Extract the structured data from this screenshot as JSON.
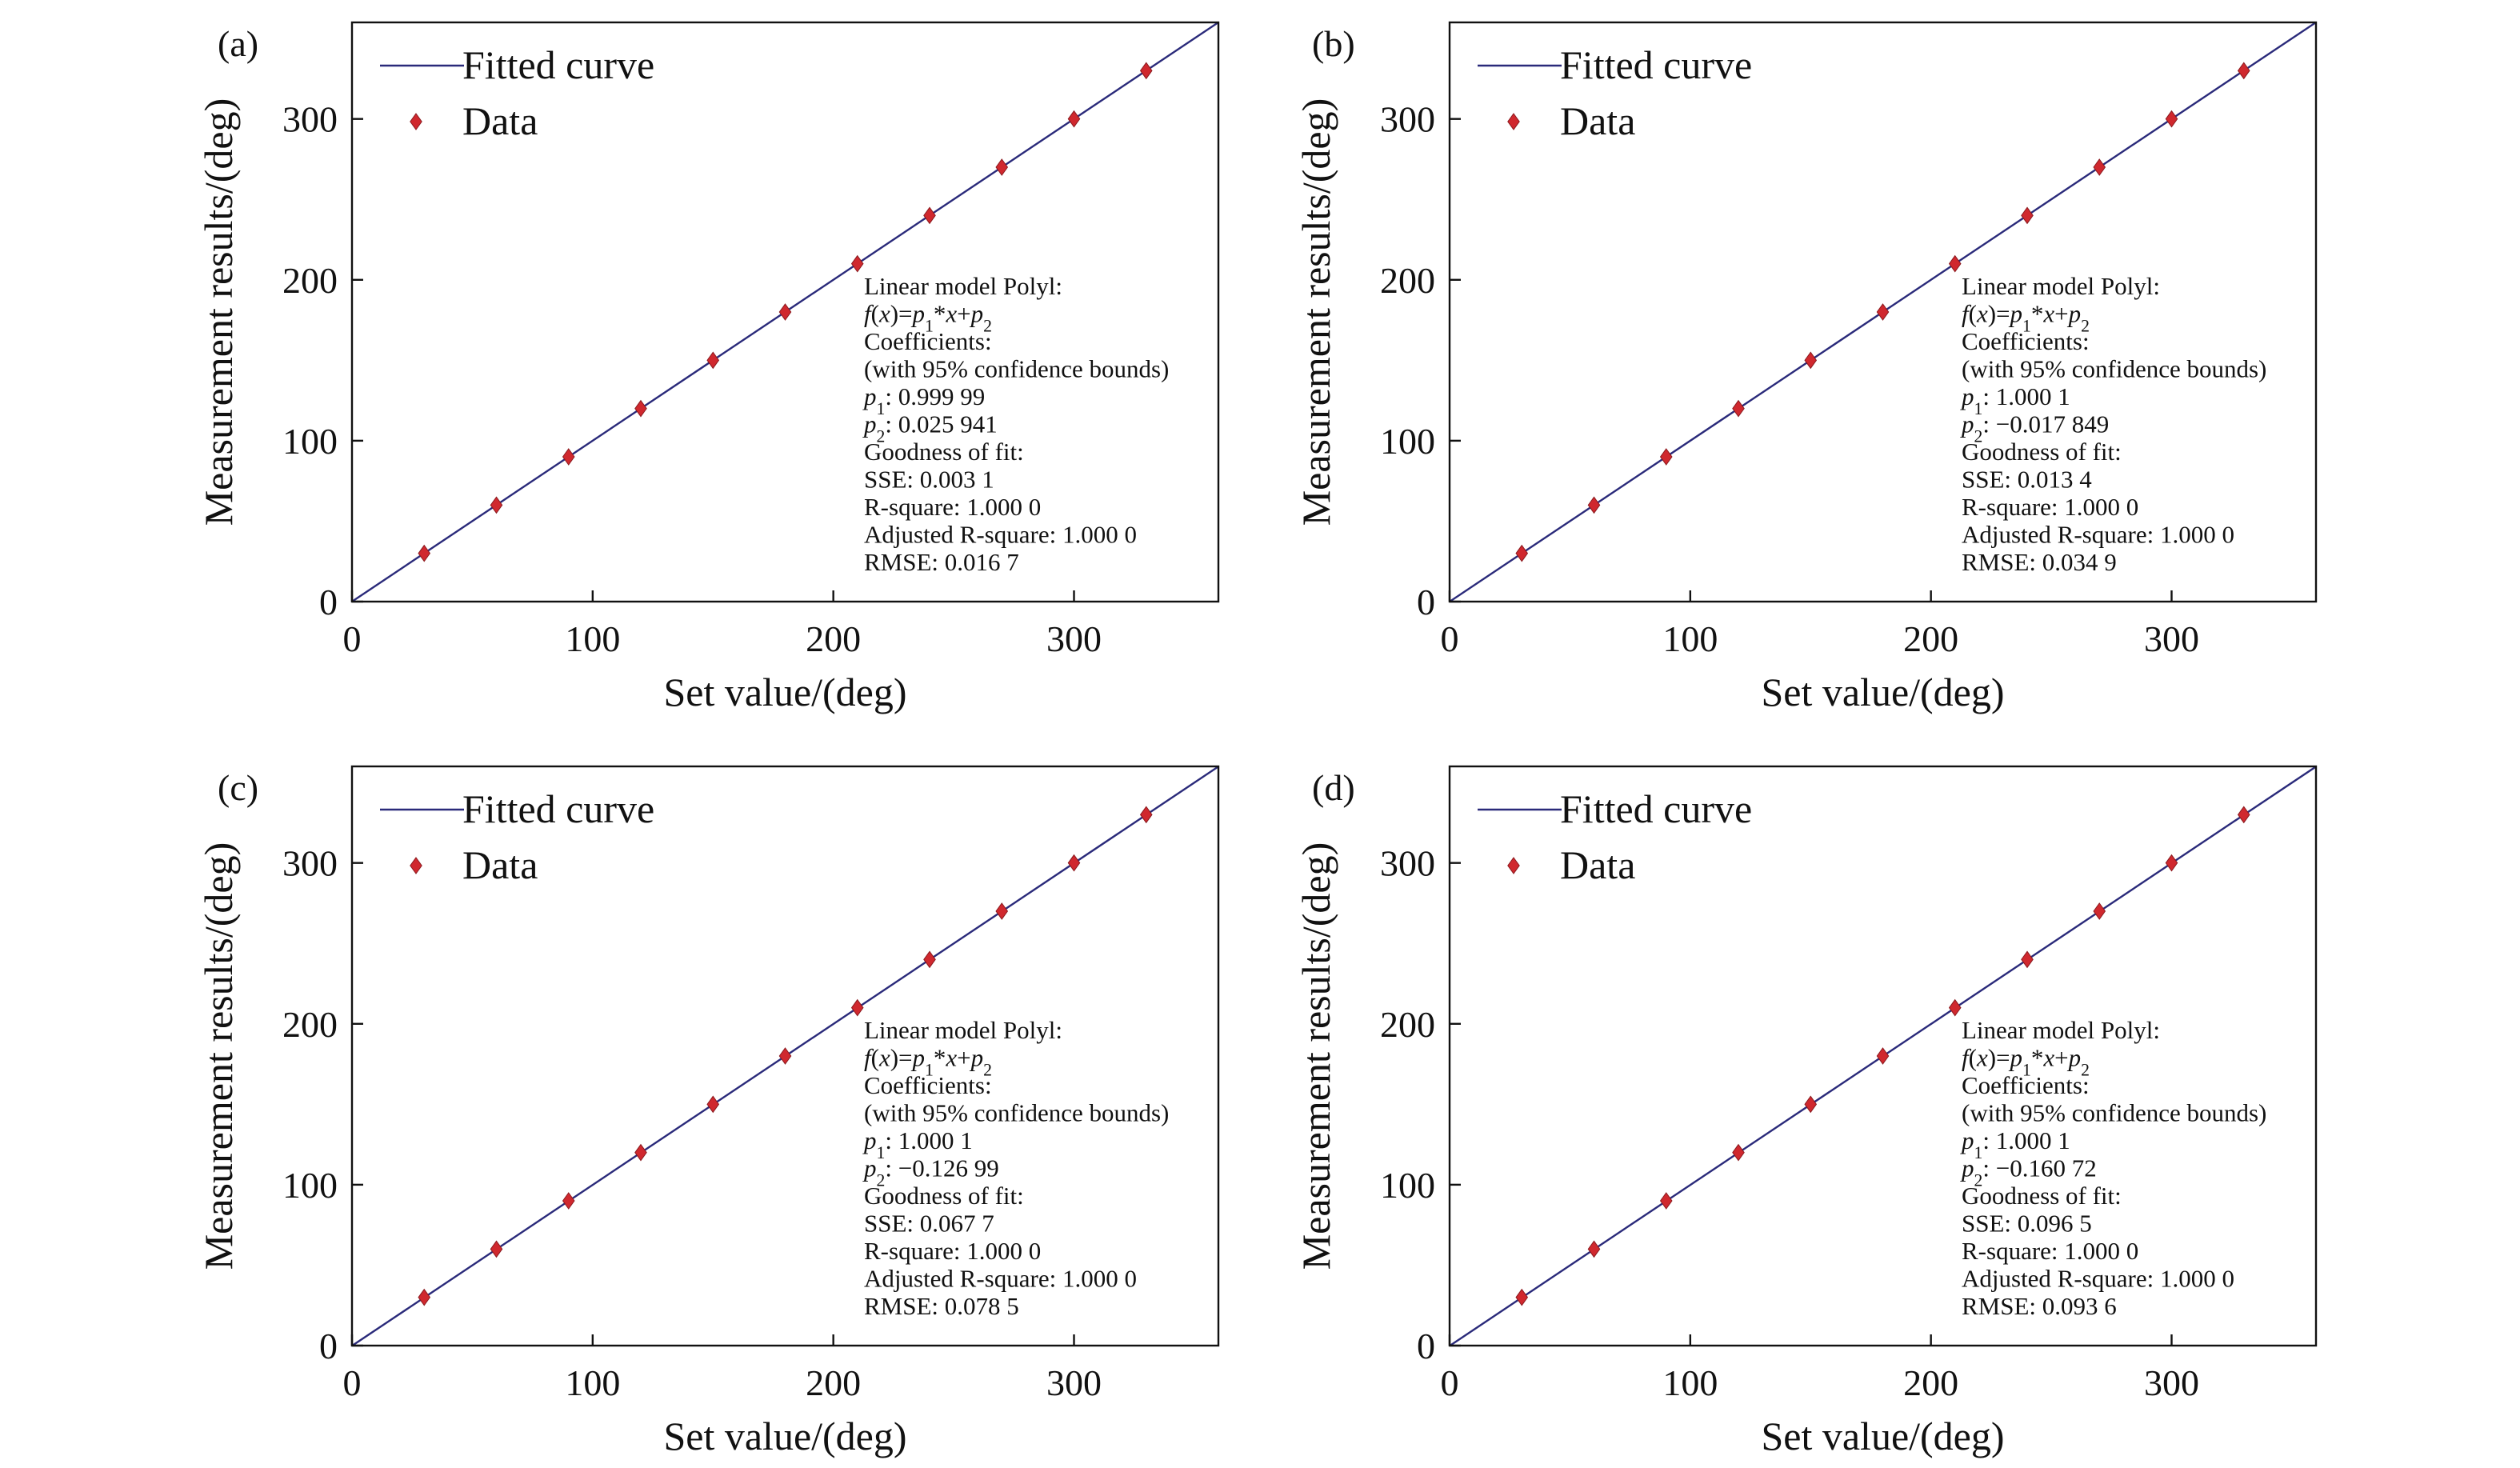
{
  "colors": {
    "fit_line": "#2a2a7a",
    "marker": "#d0282e",
    "axis": "#111111"
  },
  "chart_data": [
    {
      "panel_label": "(a)",
      "type": "scatter",
      "xlabel": "Set value/(deg)",
      "ylabel": "Measurement results/(deg)",
      "xlim": [
        0,
        360
      ],
      "ylim": [
        0,
        360
      ],
      "xticks": [
        0,
        100,
        200,
        300
      ],
      "yticks": [
        0,
        100,
        200,
        300
      ],
      "legend": {
        "position": "top-left",
        "line_label": "Fitted curve",
        "marker_label": "Data"
      },
      "data": {
        "x": [
          30,
          60,
          90,
          120,
          150,
          180,
          210,
          240,
          270,
          300,
          330
        ],
        "y": [
          30,
          60,
          90,
          120,
          150,
          180,
          210,
          240,
          270,
          300,
          330
        ]
      },
      "fit": {
        "p1": 0.99999,
        "p2": 0.025941
      },
      "annotation": {
        "model": "Linear model Polyl:",
        "coefficients": "Coefficients:",
        "bounds": "(with 95% confidence bounds)",
        "p1_value": ": 0.999 99",
        "p2_value": ": 0.025 941",
        "goodness": "Goodness of fit:",
        "sse": "SSE: 0.003 1",
        "rsq": "R-square: 1.000 0",
        "adj_rsq": "Adjusted R-square: 1.000 0",
        "rmse": "RMSE: 0.016 7"
      }
    },
    {
      "panel_label": "(b)",
      "type": "scatter",
      "xlabel": "Set value/(deg)",
      "ylabel": "Measurement results/(deg)",
      "xlim": [
        0,
        360
      ],
      "ylim": [
        0,
        360
      ],
      "xticks": [
        0,
        100,
        200,
        300
      ],
      "yticks": [
        0,
        100,
        200,
        300
      ],
      "legend": {
        "position": "top-left",
        "line_label": "Fitted curve",
        "marker_label": "Data"
      },
      "data": {
        "x": [
          30,
          60,
          90,
          120,
          150,
          180,
          210,
          240,
          270,
          300,
          330
        ],
        "y": [
          30,
          60,
          90,
          120,
          150,
          180,
          210,
          240,
          270,
          300,
          330
        ]
      },
      "fit": {
        "p1": 1.0001,
        "p2": -0.017849
      },
      "annotation": {
        "model": "Linear model Polyl:",
        "coefficients": "Coefficients:",
        "bounds": "(with 95% confidence bounds)",
        "p1_value": ": 1.000 1",
        "p2_value": ": −0.017 849",
        "goodness": "Goodness of fit:",
        "sse": "SSE: 0.013 4",
        "rsq": "R-square: 1.000 0",
        "adj_rsq": "Adjusted R-square: 1.000 0",
        "rmse": "RMSE: 0.034 9"
      }
    },
    {
      "panel_label": "(c)",
      "type": "scatter",
      "xlabel": "Set value/(deg)",
      "ylabel": "Measurement results/(deg)",
      "xlim": [
        0,
        360
      ],
      "ylim": [
        0,
        360
      ],
      "xticks": [
        0,
        100,
        200,
        300
      ],
      "yticks": [
        0,
        100,
        200,
        300
      ],
      "legend": {
        "position": "top-left",
        "line_label": "Fitted curve",
        "marker_label": "Data"
      },
      "data": {
        "x": [
          30,
          60,
          90,
          120,
          150,
          180,
          210,
          240,
          270,
          300,
          330
        ],
        "y": [
          30,
          60,
          90,
          120,
          150,
          180,
          210,
          240,
          270,
          300,
          330
        ]
      },
      "fit": {
        "p1": 1.0001,
        "p2": -0.12699
      },
      "annotation": {
        "model": "Linear model Polyl:",
        "coefficients": "Coefficients:",
        "bounds": "(with 95% confidence bounds)",
        "p1_value": ": 1.000 1",
        "p2_value": ": −0.126 99",
        "goodness": "Goodness of fit:",
        "sse": "SSE: 0.067 7",
        "rsq": "R-square: 1.000 0",
        "adj_rsq": "Adjusted R-square: 1.000 0",
        "rmse": "RMSE: 0.078 5"
      }
    },
    {
      "panel_label": "(d)",
      "type": "scatter",
      "xlabel": "Set value/(deg)",
      "ylabel": "Measurement results/(deg)",
      "xlim": [
        0,
        360
      ],
      "ylim": [
        0,
        360
      ],
      "xticks": [
        0,
        100,
        200,
        300
      ],
      "yticks": [
        0,
        100,
        200,
        300
      ],
      "legend": {
        "position": "top-left",
        "line_label": "Fitted curve",
        "marker_label": "Data"
      },
      "data": {
        "x": [
          30,
          60,
          90,
          120,
          150,
          180,
          210,
          240,
          270,
          300,
          330
        ],
        "y": [
          30,
          60,
          90,
          120,
          150,
          180,
          210,
          240,
          270,
          300,
          330
        ]
      },
      "fit": {
        "p1": 1.0001,
        "p2": -0.16072
      },
      "annotation": {
        "model": "Linear model Polyl:",
        "coefficients": "Coefficients:",
        "bounds": "(with 95% confidence bounds)",
        "p1_value": ": 1.000 1",
        "p2_value": ": −0.160 72",
        "goodness": "Goodness of fit:",
        "sse": "SSE: 0.096 5",
        "rsq": "R-square: 1.000 0",
        "adj_rsq": "Adjusted R-square: 1.000 0",
        "rmse": "RMSE: 0.093 6"
      }
    }
  ]
}
